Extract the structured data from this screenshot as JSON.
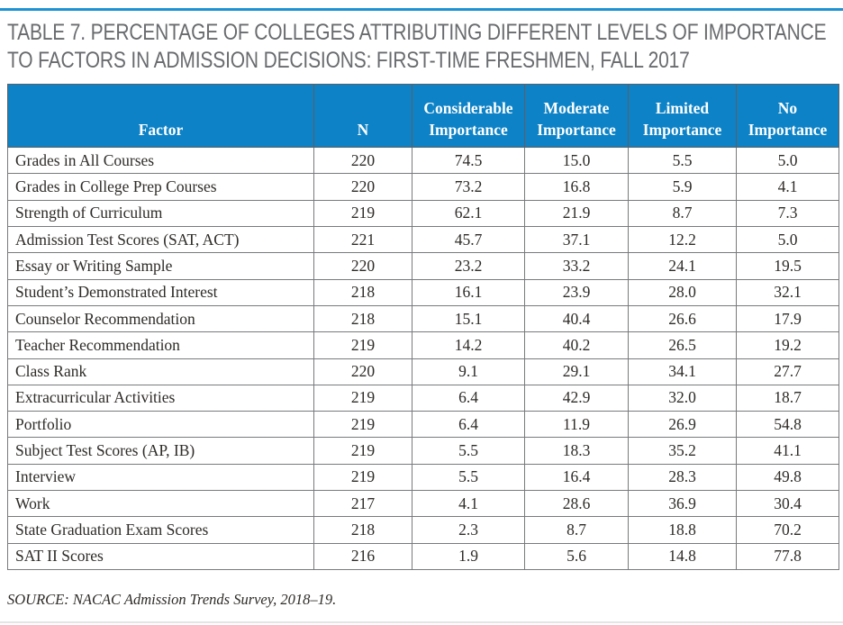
{
  "page": {
    "title_line1": "TABLE 7. PERCENTAGE OF COLLEGES ATTRIBUTING DIFFERENT LEVELS OF IMPORTANCE",
    "title_line2": "TO FACTORS IN ADMISSION DECISIONS: FIRST-TIME FRESHMEN, FALL 2017",
    "source": "SOURCE: NACAC Admission Trends Survey, 2018–19."
  },
  "colors": {
    "top_rule": "#1e93d3",
    "header_bg": "#0d82c6",
    "header_text": "#ffffff",
    "title_text": "#696b6e",
    "body_text": "#2e2b28",
    "border": "#797a7d"
  },
  "table": {
    "columns": [
      "Factor",
      "N",
      "Considerable Importance",
      "Moderate Importance",
      "Limited Importance",
      "No Importance"
    ],
    "rows": [
      [
        "Grades in All Courses",
        "220",
        "74.5",
        "15.0",
        "5.5",
        "5.0"
      ],
      [
        "Grades in College Prep Courses",
        "220",
        "73.2",
        "16.8",
        "5.9",
        "4.1"
      ],
      [
        "Strength of Curriculum",
        "219",
        "62.1",
        "21.9",
        "8.7",
        "7.3"
      ],
      [
        "Admission Test Scores (SAT, ACT)",
        "221",
        "45.7",
        "37.1",
        "12.2",
        "5.0"
      ],
      [
        "Essay or Writing Sample",
        "220",
        "23.2",
        "33.2",
        "24.1",
        "19.5"
      ],
      [
        "Student’s Demonstrated Interest",
        "218",
        "16.1",
        "23.9",
        "28.0",
        "32.1"
      ],
      [
        "Counselor Recommendation",
        "218",
        "15.1",
        "40.4",
        "26.6",
        "17.9"
      ],
      [
        "Teacher Recommendation",
        "219",
        "14.2",
        "40.2",
        "26.5",
        "19.2"
      ],
      [
        "Class Rank",
        "220",
        "9.1",
        "29.1",
        "34.1",
        "27.7"
      ],
      [
        "Extracurricular Activities",
        "219",
        "6.4",
        "42.9",
        "32.0",
        "18.7"
      ],
      [
        "Portfolio",
        "219",
        "6.4",
        "11.9",
        "26.9",
        "54.8"
      ],
      [
        "Subject Test Scores (AP, IB)",
        "219",
        "5.5",
        "18.3",
        "35.2",
        "41.1"
      ],
      [
        "Interview",
        "219",
        "5.5",
        "16.4",
        "28.3",
        "49.8"
      ],
      [
        "Work",
        "217",
        "4.1",
        "28.6",
        "36.9",
        "30.4"
      ],
      [
        "State Graduation Exam Scores",
        "218",
        "2.3",
        "8.7",
        "18.8",
        "70.2"
      ],
      [
        "SAT II Scores",
        "216",
        "1.9",
        "5.6",
        "14.8",
        "77.8"
      ]
    ]
  }
}
